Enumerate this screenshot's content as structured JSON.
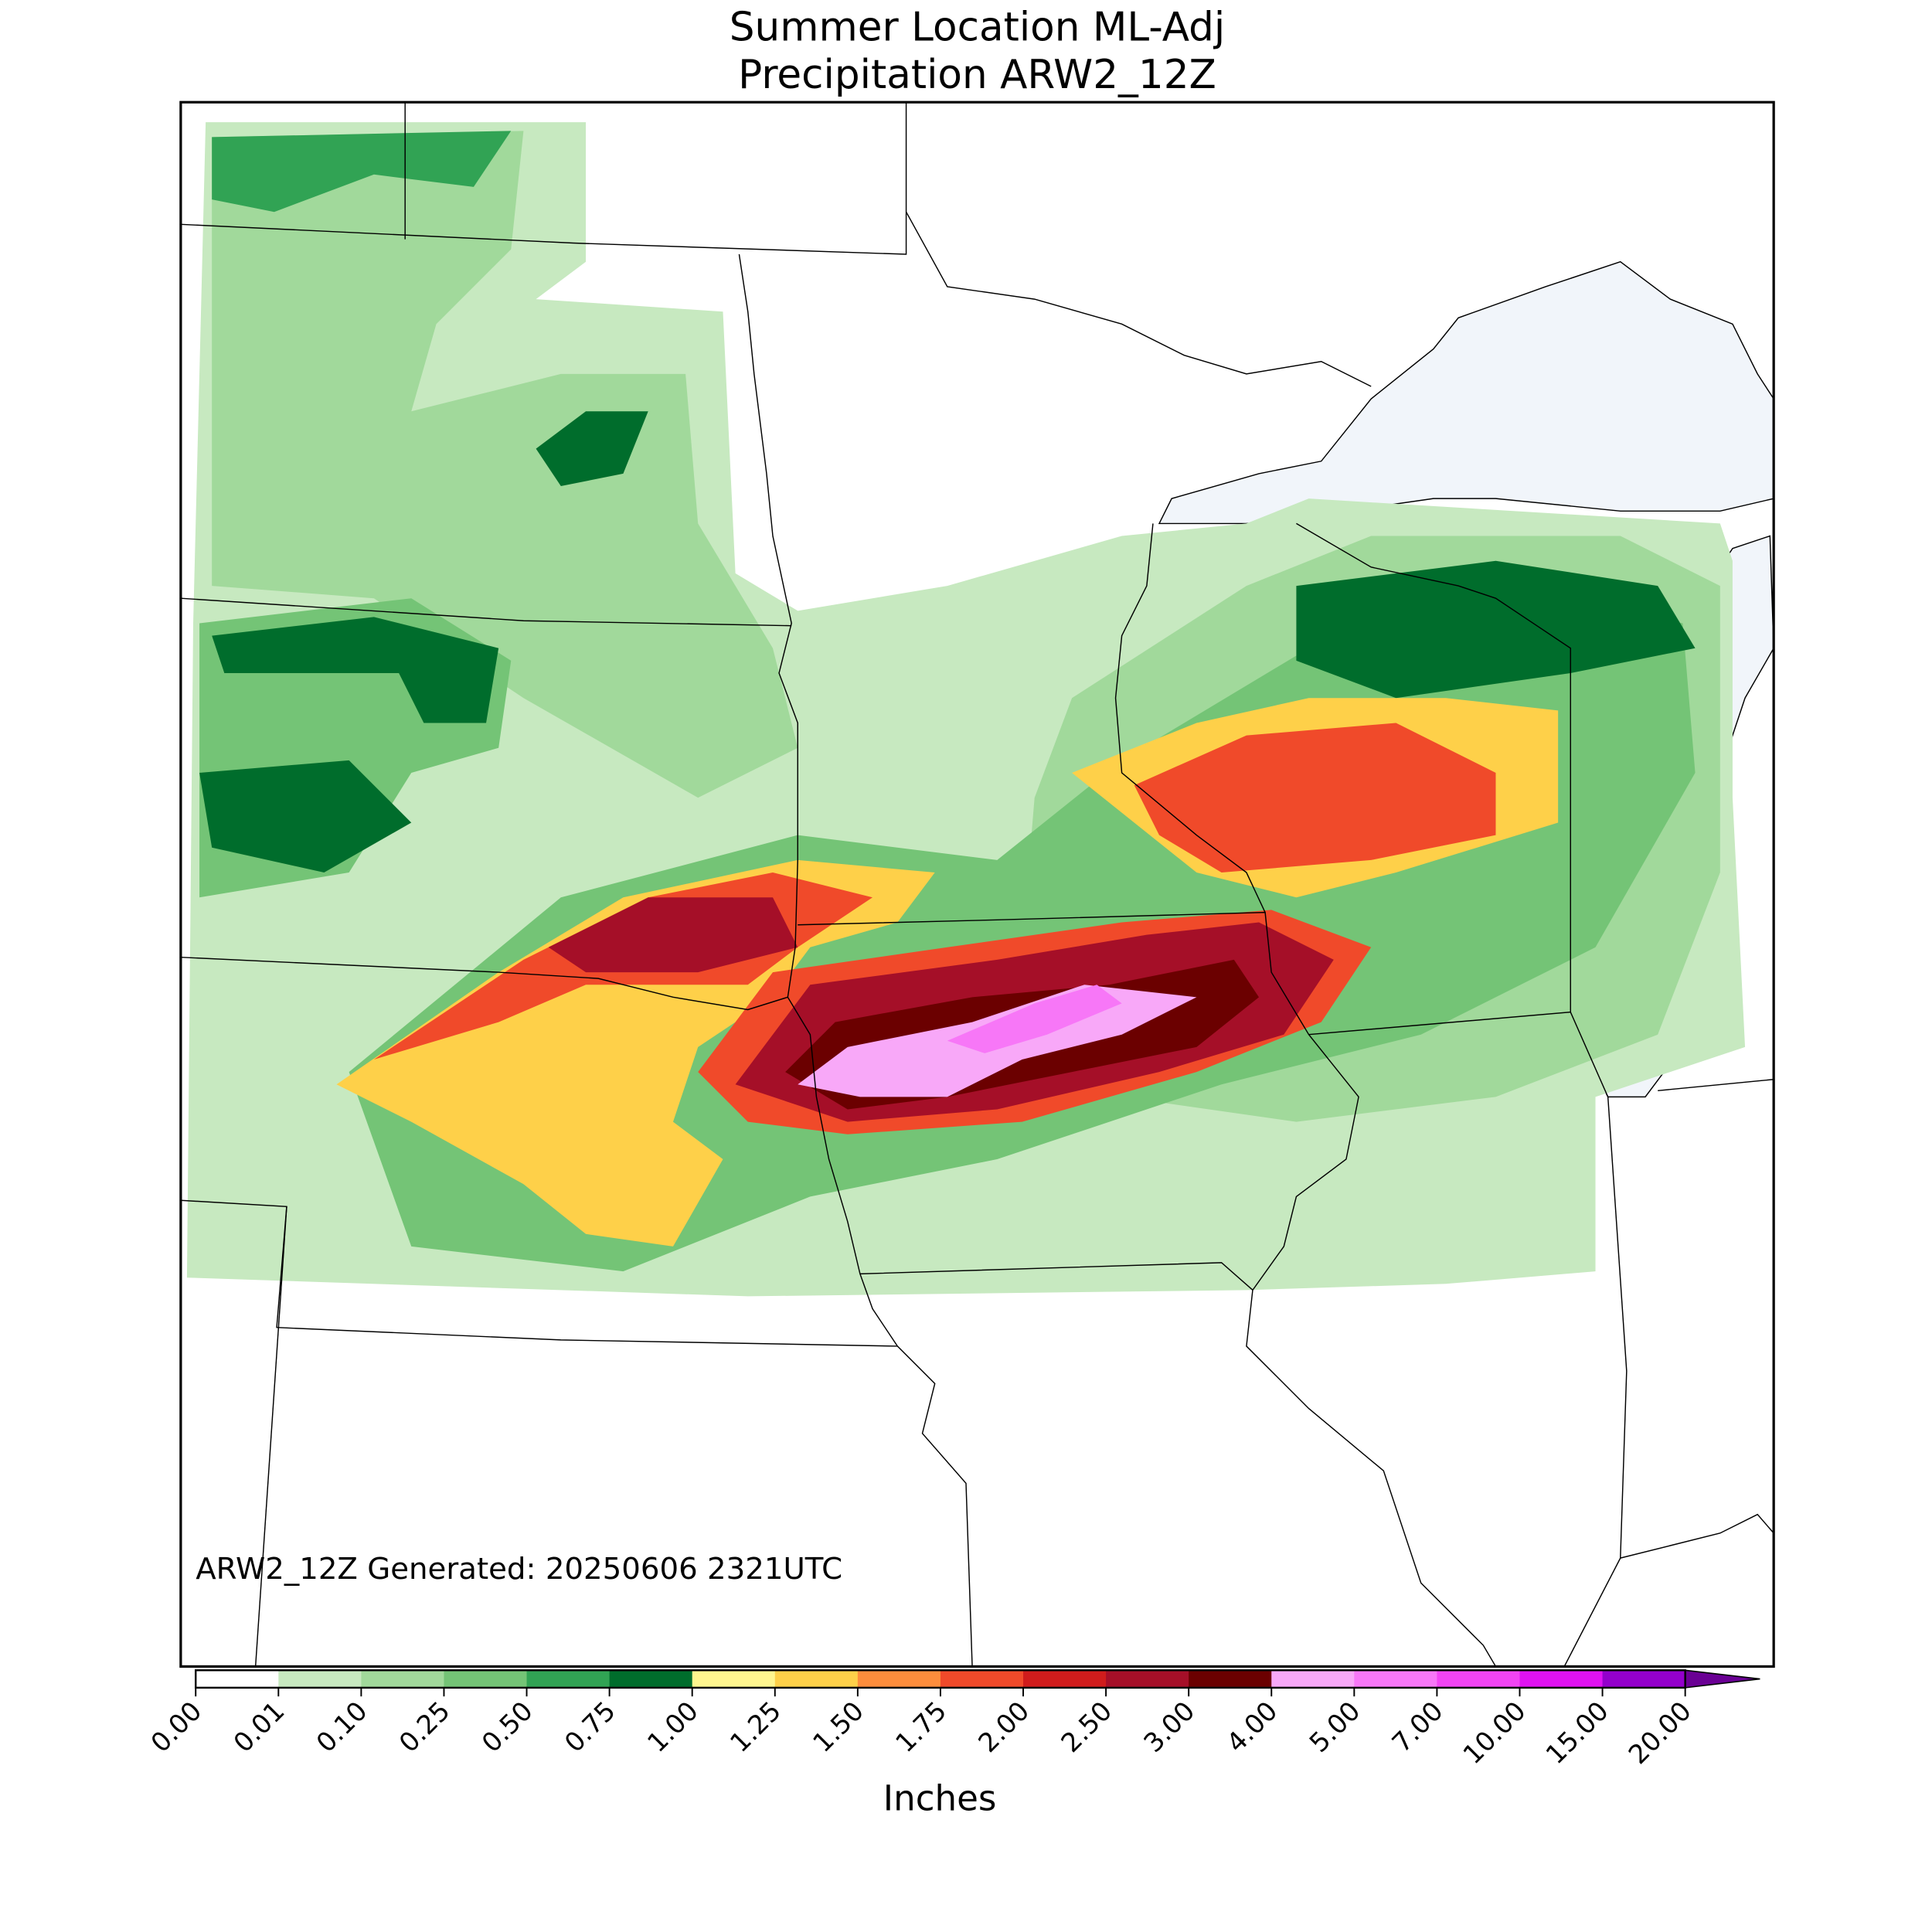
{
  "header": {
    "title_lines": [
      "Summer Location ML-Adj",
      "Precipitation ARW2_12Z"
    ]
  },
  "map": {
    "annotation": "ARW2_12Z Generated: 20250606 2321UTC"
  },
  "colorbar": {
    "label": "Inches",
    "ticks": [
      {
        "value": 0,
        "label": "0.00"
      },
      {
        "value": 0.01,
        "label": "0.01"
      },
      {
        "value": 0.1,
        "label": "0.10"
      },
      {
        "value": 0.25,
        "label": "0.25"
      },
      {
        "value": 0.5,
        "label": "0.50"
      },
      {
        "value": 0.75,
        "label": "0.75"
      },
      {
        "value": 1,
        "label": "1.00"
      },
      {
        "value": 1.25,
        "label": "1.25"
      },
      {
        "value": 1.5,
        "label": "1.50"
      },
      {
        "value": 1.75,
        "label": "1.75"
      },
      {
        "value": 2,
        "label": "2.00"
      },
      {
        "value": 2.5,
        "label": "2.50"
      },
      {
        "value": 3,
        "label": "3.00"
      },
      {
        "value": 4,
        "label": "4.00"
      },
      {
        "value": 5,
        "label": "5.00"
      },
      {
        "value": 7,
        "label": "7.00"
      },
      {
        "value": 10,
        "label": "10.00"
      },
      {
        "value": 15,
        "label": "15.00"
      },
      {
        "value": 20,
        "label": "20.00"
      }
    ],
    "colors": [
      "#ffffff",
      "#c7e9c0",
      "#a1d99b",
      "#74c476",
      "#31a354",
      "#006d2c",
      "#fff68f",
      "#fed049",
      "#fd8d3c",
      "#f04a2a",
      "#d01c1c",
      "#a50f28",
      "#6b0000",
      "#f8a8f8",
      "#f777f7",
      "#f244f4",
      "#e012f2",
      "#9400cc"
    ],
    "extend_color": "#6a0094"
  }
}
